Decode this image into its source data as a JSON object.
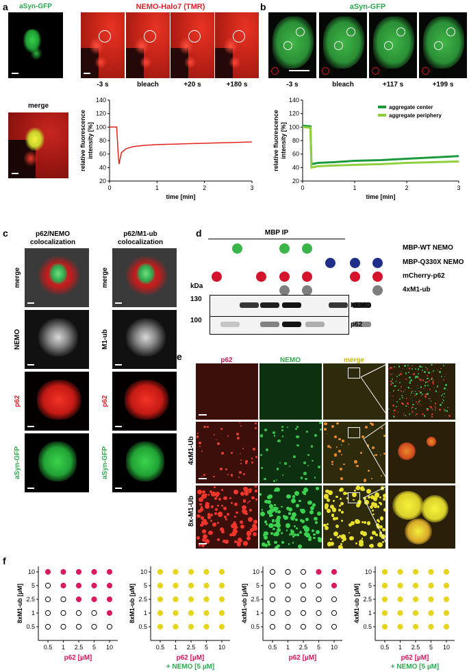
{
  "panel_labels": {
    "a": "a",
    "b": "b",
    "c": "c",
    "d": "d",
    "e": "e",
    "f": "f"
  },
  "panel_a": {
    "channel1": "aSyn-GFP",
    "channel2": "NEMO-Halo7 (TMR)",
    "times": [
      "-3 s",
      "bleach",
      "+20 s",
      "+180 s"
    ],
    "merge": "merge",
    "colors": {
      "red": "#e0202a",
      "green": "#2fa84f",
      "trace": "#e2231a"
    }
  },
  "panel_b": {
    "channel": "aSyn-GFP",
    "times": [
      "-3 s",
      "bleach",
      "+117 s",
      "+199 s"
    ],
    "legend": [
      "aggregate center",
      "aggregate periphery"
    ],
    "colors": {
      "center": "#1a9a3c",
      "periphery": "#8fcf3c"
    }
  },
  "chart_data": [
    {
      "type": "line",
      "xlabel": "time [min]",
      "ylabel": "relative fluorescence intensity [%]",
      "xlim": [
        0,
        3
      ],
      "ylim": [
        20,
        140
      ],
      "xticks": [
        "0",
        "1",
        "2",
        "3"
      ],
      "yticks": [
        "20",
        "40",
        "60",
        "80",
        "100",
        "120",
        "140"
      ],
      "series": [
        {
          "x": [
            0,
            0.15,
            0.18,
            0.2,
            0.25,
            0.35,
            0.5,
            0.75,
            1,
            1.5,
            2,
            2.5,
            3
          ],
          "y": [
            100,
            100,
            62,
            45,
            62,
            68,
            71,
            73,
            74,
            75,
            76,
            77,
            78
          ]
        }
      ]
    },
    {
      "type": "line",
      "xlabel": "time [min]",
      "ylabel": "relative fluorescence intensity [%]",
      "xlim": [
        0,
        3
      ],
      "ylim": [
        20,
        140
      ],
      "xticks": [
        "0",
        "1",
        "2",
        "3"
      ],
      "yticks": [
        "20",
        "40",
        "60",
        "80",
        "100",
        "120",
        "140"
      ],
      "legend_position": "top-right",
      "series": [
        {
          "name": "aggregate center",
          "x": [
            0,
            0.15,
            0.17,
            0.3,
            0.6,
            1,
            1.5,
            2,
            2.5,
            3
          ],
          "y": [
            102,
            101,
            45,
            47,
            48,
            50,
            51,
            53,
            55,
            57
          ]
        },
        {
          "name": "aggregate periphery",
          "x": [
            0,
            0.15,
            0.17,
            0.3,
            0.6,
            1,
            1.5,
            2,
            2.5,
            3
          ],
          "y": [
            100,
            99,
            40,
            42,
            43,
            44,
            45,
            47,
            48,
            49
          ]
        }
      ]
    },
    {
      "type": "scatter",
      "xlabel": "p62 [µM]",
      "ylabel": "8xM1-ub [µM]",
      "xticks": [
        "0.5",
        "1",
        "2.5",
        "5",
        "10"
      ],
      "yticks": [
        "10",
        "5",
        "2.5",
        "1",
        "0.5"
      ],
      "grid": [
        [
          1,
          1,
          1,
          1,
          1
        ],
        [
          0,
          1,
          1,
          1,
          1
        ],
        [
          0,
          0,
          1,
          1,
          1
        ],
        [
          0,
          0,
          0,
          0,
          1
        ],
        [
          0,
          0,
          0,
          0,
          0
        ]
      ],
      "fill_color": "#d81b60"
    },
    {
      "type": "scatter",
      "xlabel": "p62 [µM]",
      "xlabel2": "+ NEMO [5 µM]",
      "ylabel": "8xM1-ub [µM]",
      "xticks": [
        "0.5",
        "1",
        "2.5",
        "5",
        "10"
      ],
      "yticks": [
        "10",
        "5",
        "2.5",
        "1",
        "0.5"
      ],
      "grid": [
        [
          1,
          1,
          1,
          1,
          1
        ],
        [
          1,
          1,
          1,
          1,
          1
        ],
        [
          1,
          1,
          1,
          1,
          1
        ],
        [
          1,
          1,
          1,
          1,
          1
        ],
        [
          1,
          1,
          1,
          1,
          1
        ]
      ],
      "fill_color": "#e6d41e"
    },
    {
      "type": "scatter",
      "xlabel": "p62 [µM]",
      "ylabel": "4xM1-ub [µM]",
      "xticks": [
        "0.5",
        "1",
        "2.5",
        "5",
        "10"
      ],
      "yticks": [
        "10",
        "5",
        "2.5",
        "1",
        "0.5"
      ],
      "grid": [
        [
          0,
          0,
          0,
          1,
          1
        ],
        [
          0,
          0,
          0,
          0,
          1
        ],
        [
          0,
          0,
          0,
          0,
          0
        ],
        [
          0,
          0,
          0,
          0,
          0
        ],
        [
          0,
          0,
          0,
          0,
          0
        ]
      ],
      "fill_color": "#d81b60"
    },
    {
      "type": "scatter",
      "xlabel": "p62 [µM]",
      "xlabel2": "+ NEMO [5 µM]",
      "ylabel": "4xM1-ub [µM]",
      "xticks": [
        "0.5",
        "1",
        "2.5",
        "5",
        "10"
      ],
      "yticks": [
        "10",
        "5",
        "2.5",
        "1",
        "0.5"
      ],
      "grid": [
        [
          1,
          1,
          1,
          1,
          1
        ],
        [
          1,
          1,
          1,
          1,
          1
        ],
        [
          1,
          1,
          1,
          1,
          1
        ],
        [
          1,
          1,
          1,
          1,
          1
        ],
        [
          1,
          1,
          1,
          1,
          1
        ]
      ],
      "fill_color": "#e6d41e"
    }
  ],
  "panel_c": {
    "col1_title_1": "p62/NEMO",
    "col1_title_2": "colocalization",
    "col2_title_1": "p62/M1-ub",
    "col2_title_2": "colocalization",
    "rows1": [
      "merge",
      "NEMO",
      "p62",
      "aSyn-GFP"
    ],
    "rows2": [
      "merge",
      "M1-ub",
      "p62",
      "aSyn-GFP"
    ]
  },
  "panel_d": {
    "title": "MBP IP",
    "row_labels": [
      "MBP-WT NEMO",
      "MBP-Q330X NEMO",
      "mCherry-p62",
      "4xM1-ub"
    ],
    "kda": "kDa",
    "markers": [
      "130",
      "100"
    ],
    "bands": [
      "NEMO",
      "p62"
    ]
  },
  "panel_e": {
    "cols": [
      "p62",
      "NEMO",
      "merge"
    ],
    "rows": [
      "4xM1-Ub",
      "8x-M1-Ub"
    ]
  }
}
